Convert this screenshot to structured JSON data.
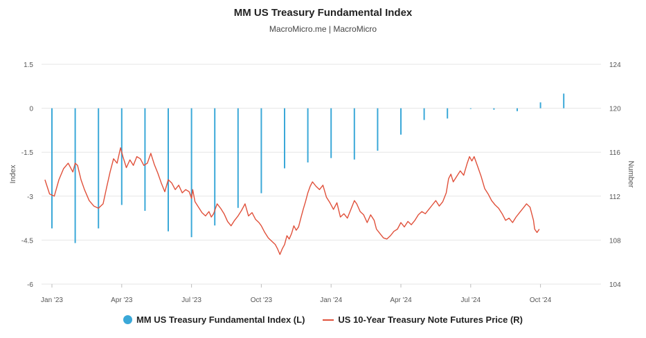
{
  "colors": {
    "bars": "#3aa8d8",
    "line": "#e0503a",
    "grid": "#e6e6e6"
  },
  "chart_data": {
    "type": "bar+line",
    "title": "MM US Treasury Fundamental Index",
    "subtitle": "MacroMicro.me | MacroMicro",
    "left_axis": {
      "label": "Index",
      "ylim": [
        -6,
        1.5
      ],
      "ticks": [
        "1.5",
        "0",
        "-1.5",
        "-3",
        "-4.5",
        "-6"
      ]
    },
    "right_axis": {
      "label": "Number",
      "ylim": [
        104,
        124
      ],
      "ticks": [
        "124",
        "120",
        "116",
        "112",
        "108",
        "104"
      ]
    },
    "x_ticks": [
      "Jan '23",
      "Apr '23",
      "Jul '23",
      "Oct '23",
      "Jan '24",
      "Apr '24",
      "Jul '24",
      "Oct '24"
    ],
    "series": [
      {
        "name": "MM US Treasury Fundamental Index (L)",
        "type": "bar",
        "month_index": [
          0,
          1,
          2,
          3,
          4,
          5,
          6,
          7,
          8,
          9,
          10,
          11,
          12,
          13,
          14,
          15,
          16,
          17,
          18,
          19,
          20,
          21,
          22
        ],
        "values": [
          -4.1,
          -4.6,
          -4.1,
          -3.3,
          -3.5,
          -4.2,
          -4.4,
          -4.0,
          -3.4,
          -2.9,
          -2.05,
          -1.85,
          -1.7,
          -1.75,
          -1.45,
          -0.9,
          -0.4,
          -0.35,
          0.0,
          -0.05,
          -0.1,
          0.2,
          0.5
        ]
      },
      {
        "name": "US 10-Year Treasury Note Futures Price (R)",
        "type": "line",
        "points": [
          [
            -0.3,
            113.5
          ],
          [
            -0.1,
            112.2
          ],
          [
            0.1,
            112.0
          ],
          [
            0.3,
            113.5
          ],
          [
            0.5,
            114.5
          ],
          [
            0.7,
            115.0
          ],
          [
            0.9,
            114.2
          ],
          [
            1.0,
            115.0
          ],
          [
            1.1,
            114.8
          ],
          [
            1.25,
            113.5
          ],
          [
            1.4,
            112.6
          ],
          [
            1.6,
            111.6
          ],
          [
            1.8,
            111.1
          ],
          [
            2.0,
            110.9
          ],
          [
            2.2,
            111.3
          ],
          [
            2.35,
            112.8
          ],
          [
            2.5,
            114.2
          ],
          [
            2.65,
            115.4
          ],
          [
            2.8,
            115.0
          ],
          [
            2.95,
            116.4
          ],
          [
            3.05,
            115.6
          ],
          [
            3.2,
            114.6
          ],
          [
            3.35,
            115.3
          ],
          [
            3.5,
            114.8
          ],
          [
            3.65,
            115.6
          ],
          [
            3.8,
            115.4
          ],
          [
            3.95,
            114.8
          ],
          [
            4.1,
            115.0
          ],
          [
            4.25,
            115.9
          ],
          [
            4.4,
            114.9
          ],
          [
            4.55,
            114.1
          ],
          [
            4.7,
            113.2
          ],
          [
            4.85,
            112.4
          ],
          [
            5.0,
            113.5
          ],
          [
            5.15,
            113.2
          ],
          [
            5.3,
            112.6
          ],
          [
            5.45,
            113.0
          ],
          [
            5.6,
            112.3
          ],
          [
            5.75,
            112.6
          ],
          [
            5.9,
            112.4
          ],
          [
            6.0,
            111.8
          ],
          [
            6.05,
            112.6
          ],
          [
            6.15,
            111.5
          ],
          [
            6.3,
            111.0
          ],
          [
            6.45,
            110.5
          ],
          [
            6.6,
            110.2
          ],
          [
            6.75,
            110.6
          ],
          [
            6.85,
            110.1
          ],
          [
            6.95,
            110.4
          ],
          [
            7.1,
            111.3
          ],
          [
            7.25,
            110.9
          ],
          [
            7.4,
            110.4
          ],
          [
            7.55,
            109.7
          ],
          [
            7.7,
            109.3
          ],
          [
            7.85,
            109.8
          ],
          [
            8.0,
            110.2
          ],
          [
            8.15,
            110.7
          ],
          [
            8.3,
            111.3
          ],
          [
            8.45,
            110.2
          ],
          [
            8.6,
            110.5
          ],
          [
            8.75,
            109.9
          ],
          [
            8.9,
            109.6
          ],
          [
            9.0,
            109.3
          ],
          [
            9.15,
            108.7
          ],
          [
            9.3,
            108.2
          ],
          [
            9.45,
            107.9
          ],
          [
            9.6,
            107.6
          ],
          [
            9.7,
            107.2
          ],
          [
            9.8,
            106.7
          ],
          [
            9.9,
            107.2
          ],
          [
            10.0,
            107.6
          ],
          [
            10.1,
            108.4
          ],
          [
            10.2,
            108.1
          ],
          [
            10.3,
            108.6
          ],
          [
            10.4,
            109.3
          ],
          [
            10.5,
            108.9
          ],
          [
            10.6,
            109.2
          ],
          [
            10.7,
            110.0
          ],
          [
            10.8,
            110.8
          ],
          [
            10.9,
            111.5
          ],
          [
            11.0,
            112.3
          ],
          [
            11.1,
            112.9
          ],
          [
            11.2,
            113.3
          ],
          [
            11.35,
            112.9
          ],
          [
            11.5,
            112.6
          ],
          [
            11.65,
            113.0
          ],
          [
            11.8,
            111.9
          ],
          [
            11.95,
            111.4
          ],
          [
            12.1,
            110.8
          ],
          [
            12.25,
            111.4
          ],
          [
            12.4,
            110.1
          ],
          [
            12.55,
            110.4
          ],
          [
            12.7,
            110.0
          ],
          [
            12.85,
            110.8
          ],
          [
            13.0,
            111.6
          ],
          [
            13.1,
            111.3
          ],
          [
            13.25,
            110.6
          ],
          [
            13.4,
            110.3
          ],
          [
            13.55,
            109.6
          ],
          [
            13.7,
            110.3
          ],
          [
            13.85,
            109.8
          ],
          [
            13.95,
            109.0
          ],
          [
            14.1,
            108.6
          ],
          [
            14.25,
            108.2
          ],
          [
            14.4,
            108.1
          ],
          [
            14.55,
            108.4
          ],
          [
            14.7,
            108.8
          ],
          [
            14.85,
            109.0
          ],
          [
            15.0,
            109.6
          ],
          [
            15.15,
            109.2
          ],
          [
            15.3,
            109.7
          ],
          [
            15.45,
            109.4
          ],
          [
            15.6,
            109.8
          ],
          [
            15.75,
            110.3
          ],
          [
            15.9,
            110.6
          ],
          [
            16.05,
            110.4
          ],
          [
            16.2,
            110.8
          ],
          [
            16.35,
            111.2
          ],
          [
            16.5,
            111.6
          ],
          [
            16.65,
            111.1
          ],
          [
            16.8,
            111.5
          ],
          [
            16.95,
            112.3
          ],
          [
            17.05,
            113.6
          ],
          [
            17.15,
            114.0
          ],
          [
            17.25,
            113.3
          ],
          [
            17.4,
            113.8
          ],
          [
            17.55,
            114.3
          ],
          [
            17.7,
            113.9
          ],
          [
            17.85,
            115.0
          ],
          [
            17.95,
            115.6
          ],
          [
            18.05,
            115.2
          ],
          [
            18.15,
            115.6
          ],
          [
            18.3,
            114.7
          ],
          [
            18.45,
            113.8
          ],
          [
            18.6,
            112.7
          ],
          [
            18.75,
            112.2
          ],
          [
            18.9,
            111.6
          ],
          [
            19.05,
            111.2
          ],
          [
            19.2,
            110.9
          ],
          [
            19.35,
            110.4
          ],
          [
            19.5,
            109.8
          ],
          [
            19.65,
            110.0
          ],
          [
            19.8,
            109.6
          ],
          [
            19.95,
            110.1
          ],
          [
            20.1,
            110.5
          ],
          [
            20.25,
            110.9
          ],
          [
            20.4,
            111.3
          ],
          [
            20.55,
            111.0
          ],
          [
            20.7,
            109.8
          ],
          [
            20.75,
            109.0
          ],
          [
            20.85,
            108.7
          ],
          [
            20.95,
            109.0
          ]
        ]
      }
    ]
  }
}
